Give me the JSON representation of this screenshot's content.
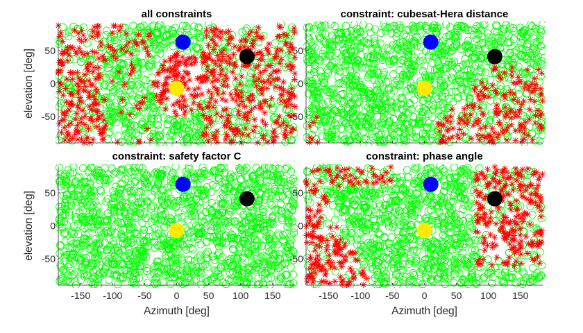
{
  "figure": {
    "xlabel": "Azimuth [deg]",
    "ylabel": "elevation [deg]",
    "xlim": [
      -185,
      185
    ],
    "ylim": [
      -90,
      90
    ],
    "xticks": [
      -150,
      -100,
      -50,
      0,
      50,
      100,
      150
    ],
    "yticks": [
      -50,
      0,
      50
    ],
    "colors": {
      "feasible": "#00ff00",
      "infeasible": "#ff0000",
      "hera": "#0000ff",
      "didymos": "#000000",
      "sun": "#ffea00"
    }
  },
  "chart_data": [
    {
      "type": "scatter",
      "title": "all constraints",
      "xlabel": "",
      "ylabel": "elevation [deg]",
      "xlim": [
        -185,
        185
      ],
      "ylim": [
        -90,
        90
      ],
      "series": [
        {
          "name": "feasible (circle)",
          "marker": "circle",
          "color": "#00ff00"
        },
        {
          "name": "infeasible (star)",
          "marker": "star",
          "color": "#ff0000",
          "regions": [
            "az -180..-110, all elevations (dense)",
            "az -110..-40, el 0..90 (sparse)",
            "az -35..45, el -50..50 (dense disc around sun)",
            "az 40..180, el -90..90 (dense)"
          ]
        }
      ],
      "markers": [
        {
          "name": "blue body",
          "az": 10,
          "el": 63,
          "color": "#0000ff"
        },
        {
          "name": "black body",
          "az": 110,
          "el": 41,
          "color": "#000000"
        },
        {
          "name": "yellow body",
          "az": 0,
          "el": -7,
          "color": "#ffea00"
        }
      ]
    },
    {
      "type": "scatter",
      "title": "constraint: cubesat-Hera distance",
      "xlabel": "",
      "ylabel": "",
      "xlim": [
        -185,
        185
      ],
      "ylim": [
        -90,
        90
      ],
      "series": [
        {
          "name": "feasible (circle)",
          "marker": "circle",
          "color": "#00ff00"
        },
        {
          "name": "infeasible (star)",
          "marker": "star",
          "color": "#ff0000",
          "regions": [
            "triangle az 20..180, el -90..25",
            "az -185..-160, el -90..-50"
          ]
        }
      ],
      "markers": [
        {
          "name": "blue body",
          "az": 10,
          "el": 63,
          "color": "#0000ff"
        },
        {
          "name": "black body",
          "az": 110,
          "el": 41,
          "color": "#000000"
        },
        {
          "name": "yellow body",
          "az": 0,
          "el": -7,
          "color": "#ffea00"
        }
      ]
    },
    {
      "type": "scatter",
      "title": "constraint: safety factor C",
      "xlabel": "Azimuth [deg]",
      "ylabel": "elevation [deg]",
      "xlim": [
        -185,
        185
      ],
      "ylim": [
        -90,
        90
      ],
      "series": [
        {
          "name": "feasible (circle)",
          "marker": "circle",
          "color": "#00ff00"
        }
      ],
      "markers": [
        {
          "name": "blue body",
          "az": 10,
          "el": 63,
          "color": "#0000ff"
        },
        {
          "name": "black body",
          "az": 110,
          "el": 41,
          "color": "#000000"
        },
        {
          "name": "yellow body",
          "az": 0,
          "el": -7,
          "color": "#ffea00"
        }
      ]
    },
    {
      "type": "scatter",
      "title": "constraint: phase angle",
      "xlabel": "Azimuth [deg]",
      "ylabel": "",
      "xlim": [
        -185,
        185
      ],
      "ylim": [
        -90,
        90
      ],
      "series": [
        {
          "name": "feasible (circle)",
          "marker": "circle",
          "color": "#00ff00"
        },
        {
          "name": "infeasible (star)",
          "marker": "star",
          "color": "#ff0000",
          "regions": [
            "az -180..-90, band narrowing toward top",
            "az -110..-50, el 60..90",
            "az 80..180, el -60..90"
          ]
        }
      ],
      "markers": [
        {
          "name": "blue body",
          "az": 10,
          "el": 63,
          "color": "#0000ff"
        },
        {
          "name": "black body",
          "az": 110,
          "el": 41,
          "color": "#000000"
        },
        {
          "name": "yellow body",
          "az": 0,
          "el": -7,
          "color": "#ffea00"
        }
      ]
    }
  ]
}
